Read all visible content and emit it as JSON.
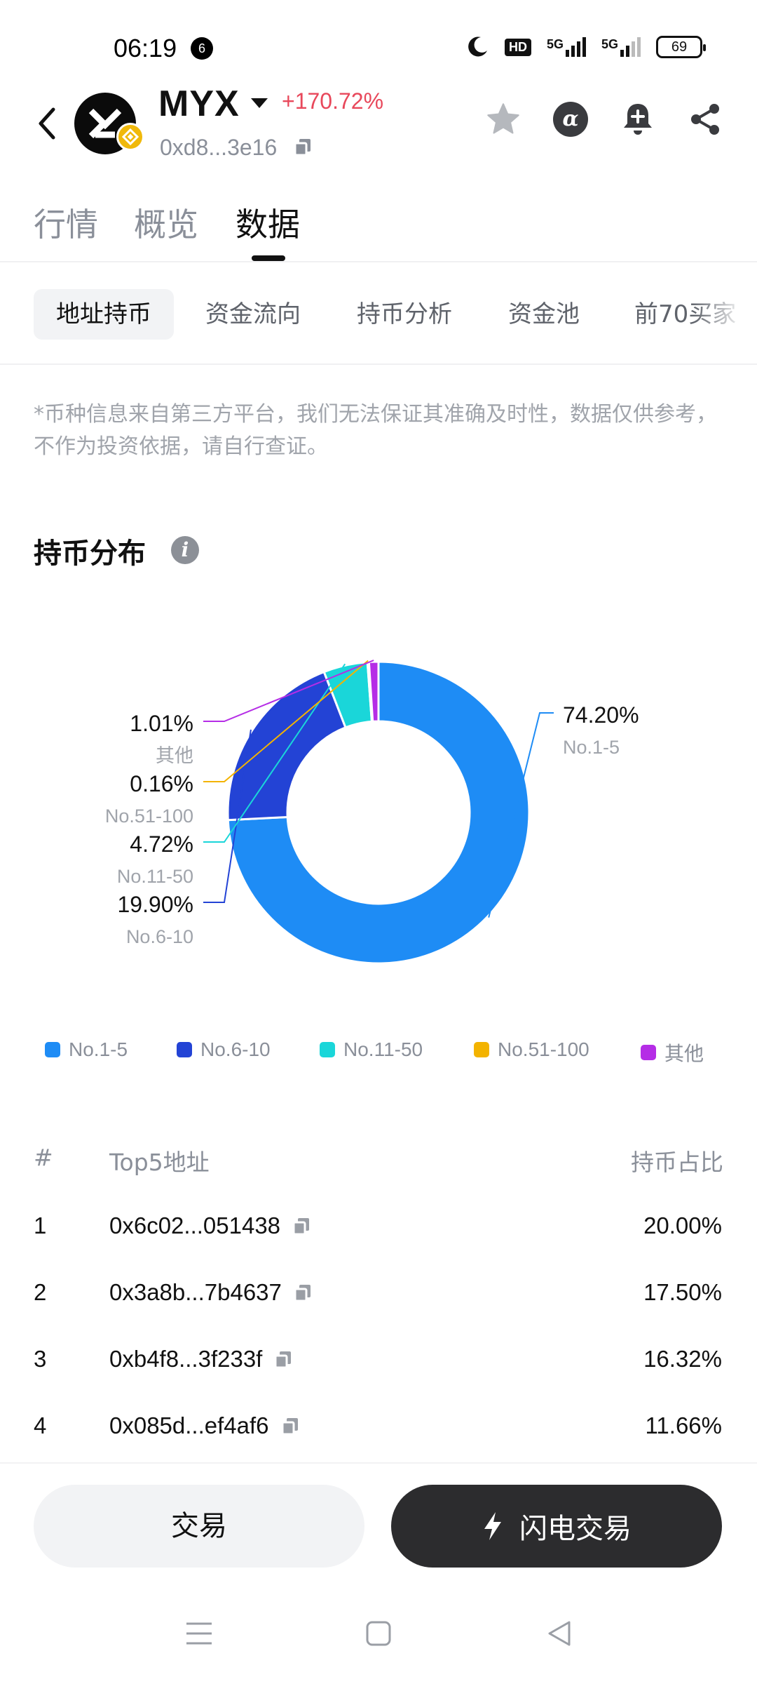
{
  "status_bar": {
    "time": "06:19",
    "notification_count": "6",
    "network_hd": "HD",
    "network_5g_1": "5G",
    "network_5g_2": "5G",
    "battery": "69"
  },
  "header": {
    "token_name": "MYX",
    "price_change": "+170.72%",
    "address": "0xd8...3e16",
    "change_color": "#e8485b",
    "actions": [
      "star-icon",
      "alpha-icon",
      "bell-add-icon",
      "share-icon"
    ]
  },
  "main_tabs": [
    {
      "label": "行情",
      "active": false
    },
    {
      "label": "概览",
      "active": false
    },
    {
      "label": "数据",
      "active": true
    }
  ],
  "sub_tabs": [
    {
      "label": "地址持币",
      "active": true
    },
    {
      "label": "资金流向",
      "active": false
    },
    {
      "label": "持币分析",
      "active": false
    },
    {
      "label": "资金池",
      "active": false
    },
    {
      "label": "前70买家",
      "active": false
    }
  ],
  "disclaimer": "*币种信息来自第三方平台，我们无法保证其准确及时性，数据仅供参考，不作为投资依据，请自行查证。",
  "section_title": "持币分布",
  "chart_data": {
    "type": "pie",
    "donut": true,
    "categories": [
      "No.1-5",
      "No.6-10",
      "No.11-50",
      "No.51-100",
      "其他"
    ],
    "values": [
      74.2,
      19.9,
      4.72,
      0.16,
      1.01
    ],
    "value_labels": [
      "74.20%",
      "19.90%",
      "4.72%",
      "0.16%",
      "1.01%"
    ],
    "colors": [
      "#1e8cf5",
      "#2343d5",
      "#1ad6d9",
      "#f3b300",
      "#b52de6"
    ],
    "legend_position": "bottom"
  },
  "table": {
    "headers": {
      "index": "#",
      "address": "Top5地址",
      "share": "持币占比"
    },
    "rows": [
      {
        "index": "1",
        "address": "0x6c02...051438",
        "share": "20.00%"
      },
      {
        "index": "2",
        "address": "0x3a8b...7b4637",
        "share": "17.50%"
      },
      {
        "index": "3",
        "address": "0xb4f8...3f233f",
        "share": "16.32%"
      },
      {
        "index": "4",
        "address": "0x085d...ef4af6",
        "share": "11.66%"
      }
    ]
  },
  "bottom_bar": {
    "trade_label": "交易",
    "flash_trade_label": "闪电交易"
  },
  "nav_bar": [
    "menu-icon",
    "home-icon",
    "back-icon"
  ]
}
